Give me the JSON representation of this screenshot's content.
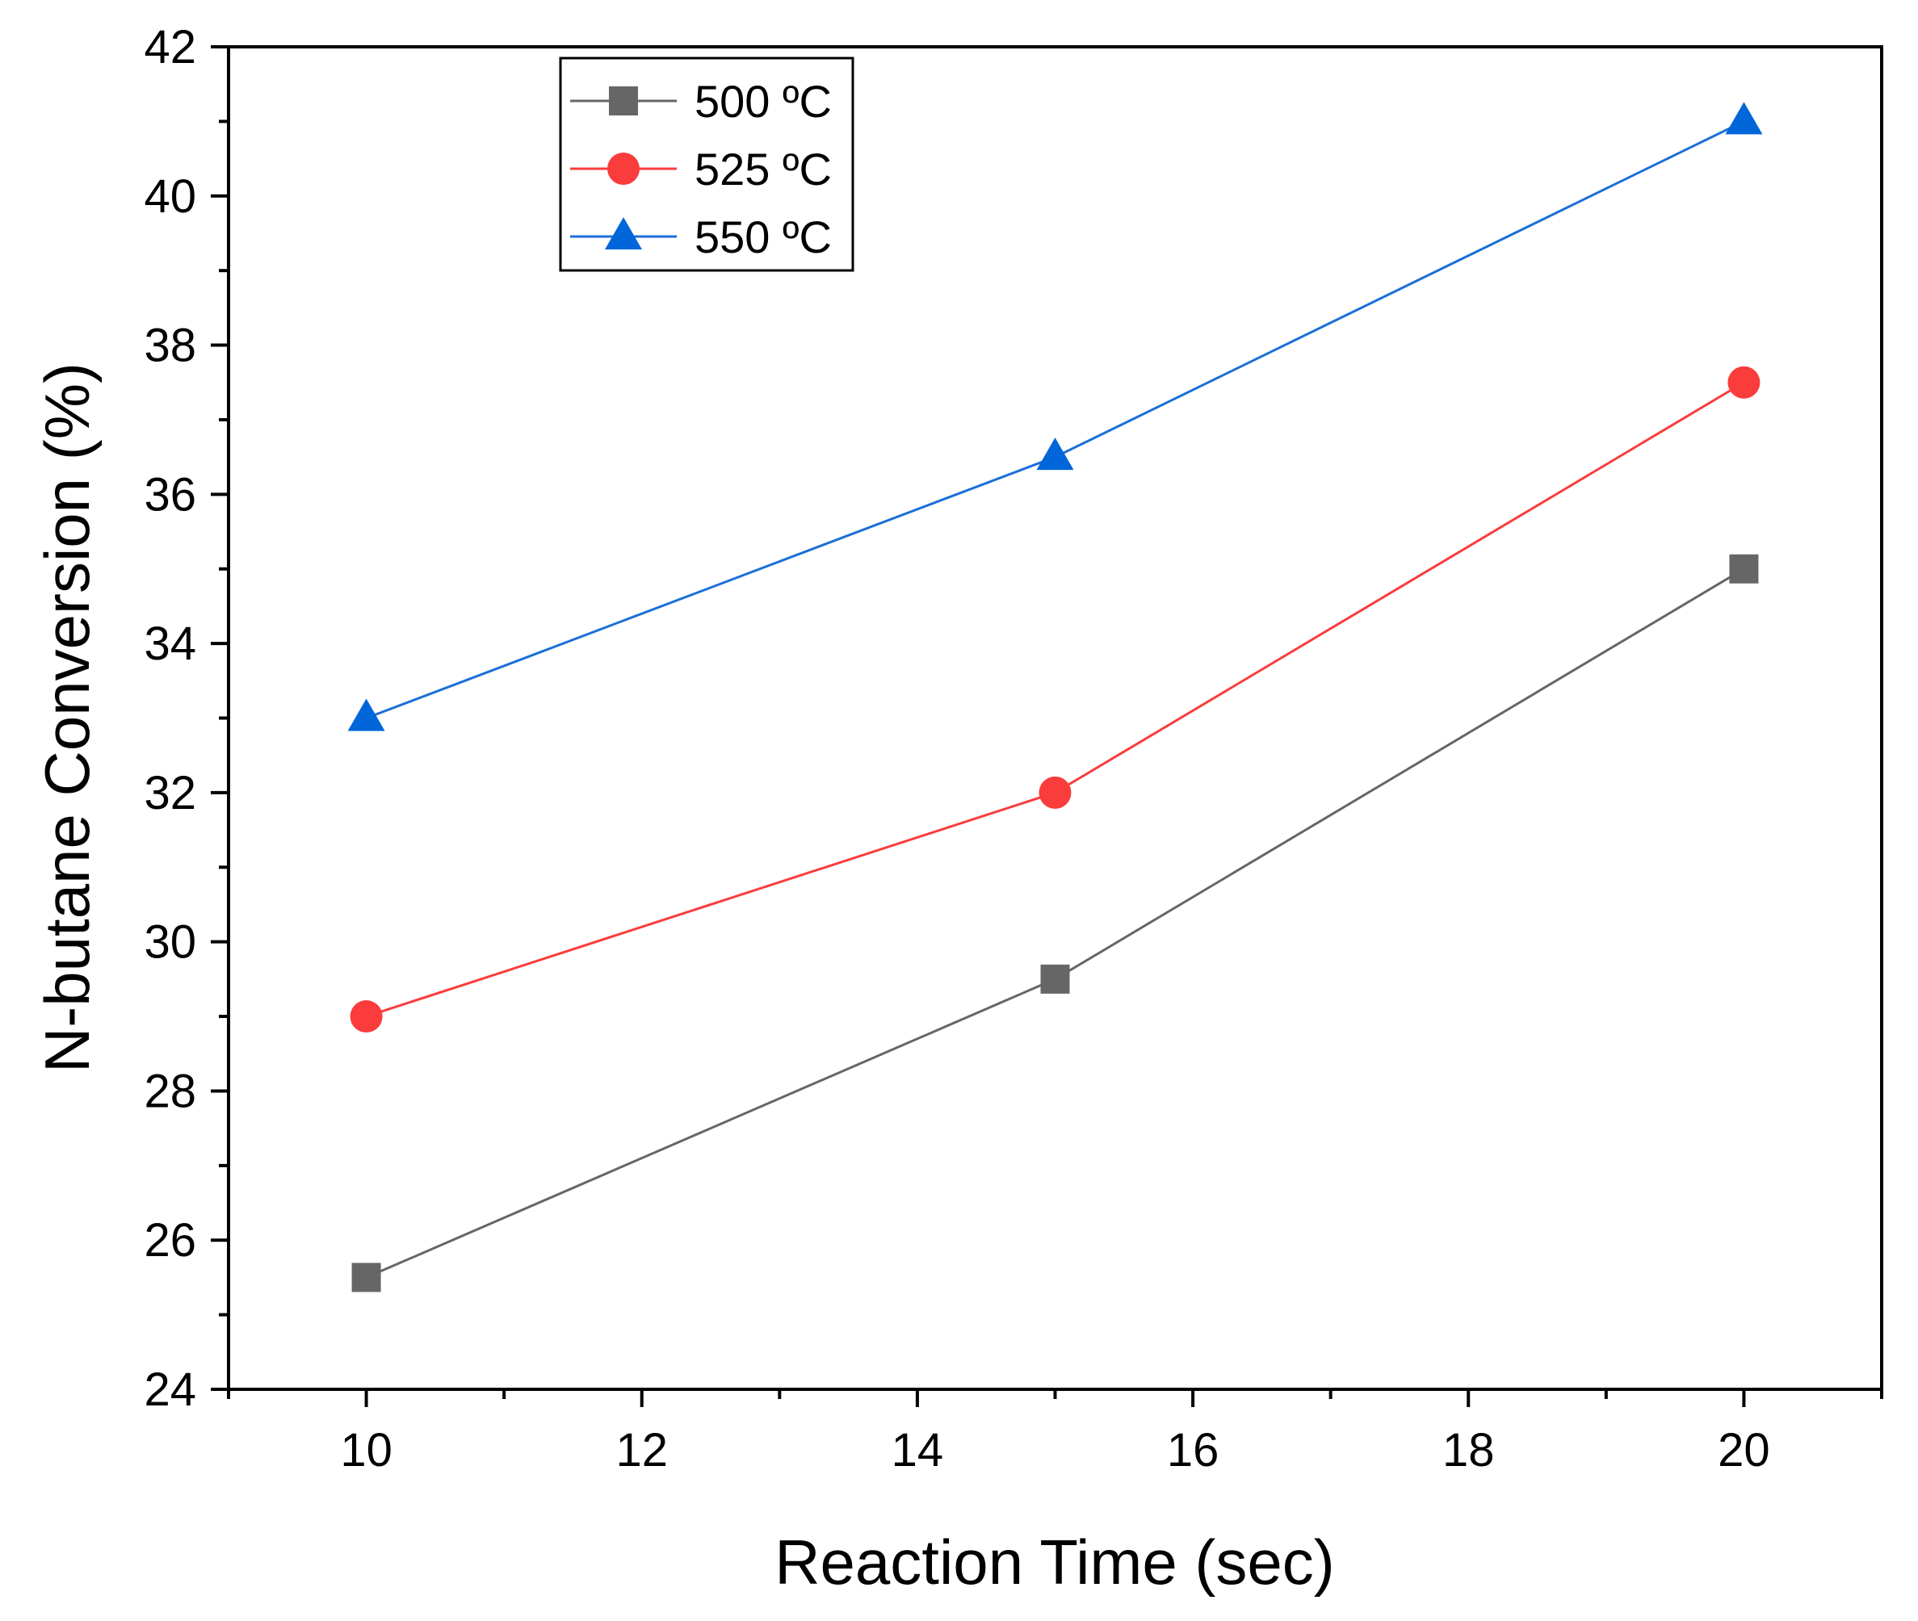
{
  "chart_data": {
    "type": "line",
    "title": "",
    "xlabel": "Reaction Time (sec)",
    "ylabel": "N-butane Conversion (%)",
    "xlim": [
      9,
      21
    ],
    "ylim": [
      24,
      42
    ],
    "xticks": [
      10,
      12,
      14,
      16,
      18,
      20
    ],
    "yticks": [
      24,
      26,
      28,
      30,
      32,
      34,
      36,
      38,
      40,
      42
    ],
    "x": [
      10,
      15,
      20
    ],
    "series": [
      {
        "name": "500 ºC",
        "marker": "square",
        "color": "#666666",
        "line_color": "#666666",
        "values": [
          25.5,
          29.5,
          35.0
        ]
      },
      {
        "name": "525 ºC",
        "marker": "circle",
        "color": "#fa3c3c",
        "line_color": "#fa3c3c",
        "values": [
          29.0,
          32.0,
          37.5
        ]
      },
      {
        "name": "550 ºC",
        "marker": "triangle",
        "color": "#0066d9",
        "line_color": "#1a6fd6",
        "values": [
          33.0,
          36.5,
          41.0
        ]
      }
    ],
    "legend_position": "top-left",
    "grid": false
  }
}
